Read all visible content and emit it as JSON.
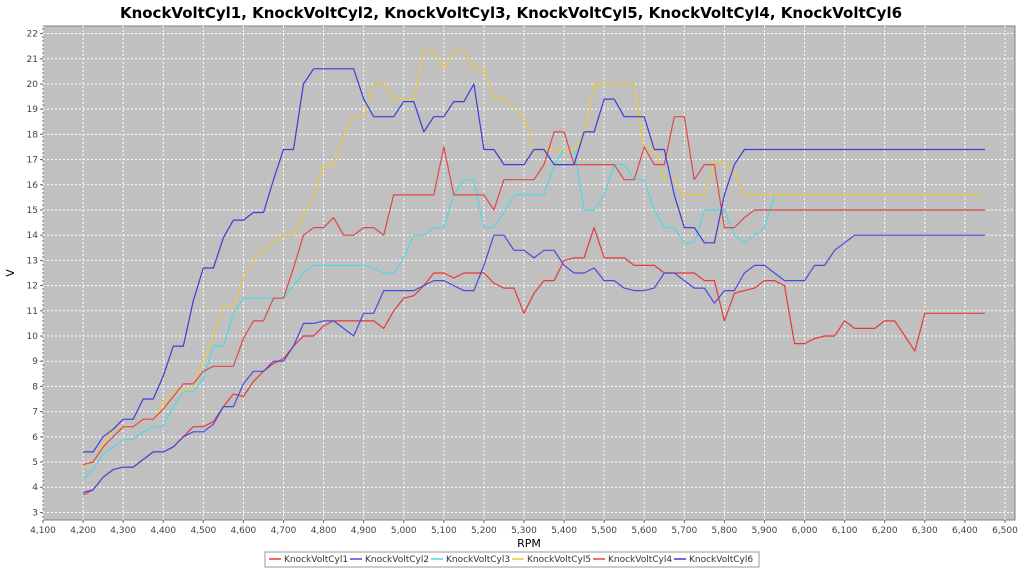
{
  "chart_data": {
    "type": "line",
    "title": "KnockVoltCyl1, KnockVoltCyl2, KnockVoltCyl3, KnockVoltCyl5, KnockVoltCyl4, KnockVoltCyl6",
    "xlabel": "RPM",
    "ylabel": "V",
    "xlim": [
      4100,
      6525
    ],
    "ylim": [
      2.7,
      22.3
    ],
    "xticks": [
      "4,100",
      "4,200",
      "4,300",
      "4,400",
      "4,500",
      "4,600",
      "4,700",
      "4,800",
      "4,900",
      "5,000",
      "5,100",
      "5,200",
      "5,300",
      "5,400",
      "5,500",
      "5,600",
      "5,700",
      "5,800",
      "5,900",
      "6,000",
      "6,100",
      "6,200",
      "6,300",
      "6,400",
      "6,500"
    ],
    "yticks": [
      "3",
      "4",
      "5",
      "6",
      "7",
      "8",
      "9",
      "10",
      "11",
      "12",
      "13",
      "14",
      "15",
      "16",
      "17",
      "18",
      "19",
      "20",
      "21",
      "22"
    ],
    "grid": true,
    "legend_position": "bottom",
    "plot_background": "#c0c0c0",
    "series": [
      {
        "name": "KnockVoltCyl1",
        "color": "#e8383a",
        "x": [
          4200,
          4225,
          4250,
          4275,
          4300,
          4325,
          4350,
          4375,
          4400,
          4425,
          4450,
          4475,
          4500,
          4525,
          4550,
          4575,
          4600,
          4625,
          4650,
          4675,
          4700,
          4725,
          4750,
          4775,
          4800,
          4825,
          4850,
          4875,
          4900,
          4925,
          4950,
          4975,
          5000,
          5025,
          5050,
          5075,
          5100,
          5125,
          5150,
          5175,
          5200,
          5225,
          5250,
          5275,
          5300,
          5325,
          5350,
          5375,
          5400,
          5425,
          5450,
          5475,
          5500,
          5525,
          5550,
          5575,
          5600,
          5625,
          5650,
          5675,
          5700,
          5725,
          5750,
          5775,
          5800,
          5825,
          5850,
          5875,
          5900,
          5925,
          5950,
          5975,
          6000,
          6025,
          6050,
          6075,
          6100,
          6125,
          6150,
          6175,
          6200,
          6225,
          6250,
          6275,
          6300,
          6325,
          6350,
          6375,
          6400,
          6425,
          6450
        ],
        "y": [
          3.7,
          3.9,
          4.4,
          4.7,
          4.8,
          4.8,
          5.1,
          5.4,
          5.4,
          5.6,
          6.0,
          6.4,
          6.4,
          6.6,
          7.2,
          7.7,
          7.6,
          8.2,
          8.6,
          8.9,
          9.1,
          9.6,
          10.0,
          10.0,
          10.4,
          10.6,
          10.6,
          10.6,
          10.6,
          10.6,
          10.3,
          11.0,
          11.5,
          11.6,
          12.0,
          12.5,
          12.5,
          12.3,
          12.5,
          12.5,
          12.5,
          12.1,
          11.9,
          11.9,
          10.9,
          11.7,
          12.2,
          12.2,
          13.0,
          13.1,
          13.1,
          14.3,
          13.1,
          13.1,
          13.1,
          12.8,
          12.8,
          12.8,
          12.5,
          12.5,
          12.5,
          12.5,
          12.2,
          12.2,
          10.6,
          11.7,
          11.8,
          11.9,
          12.2,
          12.2,
          12.0,
          9.7,
          9.7,
          9.9,
          10.0,
          10.0,
          10.6,
          10.3,
          10.3,
          10.3,
          10.6,
          10.6,
          10.0,
          9.4,
          10.9,
          10.9,
          10.9,
          10.9,
          10.9,
          10.9,
          10.9
        ]
      },
      {
        "name": "KnockVoltCyl2",
        "color": "#4a4ae0",
        "x": [
          4200,
          4225,
          4250,
          4275,
          4300,
          4325,
          4350,
          4375,
          4400,
          4425,
          4450,
          4475,
          4500,
          4525,
          4550,
          4575,
          4600,
          4625,
          4650,
          4675,
          4700,
          4725,
          4750,
          4775,
          4800,
          4825,
          4850,
          4875,
          4900,
          4925,
          4950,
          4975,
          5000,
          5025,
          5050,
          5075,
          5100,
          5125,
          5150,
          5175,
          5200,
          5225,
          5250,
          5275,
          5300,
          5325,
          5350,
          5375,
          5400,
          5425,
          5450,
          5475,
          5500,
          5525,
          5550,
          5575,
          5600,
          5625,
          5650,
          5675,
          5700,
          5725,
          5750,
          5775,
          5800,
          5825,
          5850,
          5875,
          5900,
          5925,
          5950,
          5975,
          6000,
          6025,
          6050,
          6075,
          6100,
          6125,
          6150,
          6175,
          6200,
          6225,
          6250,
          6275,
          6300,
          6325,
          6350,
          6375,
          6400,
          6425,
          6450
        ],
        "y": [
          3.8,
          3.9,
          4.4,
          4.7,
          4.8,
          4.8,
          5.1,
          5.4,
          5.4,
          5.6,
          6.0,
          6.2,
          6.2,
          6.5,
          7.2,
          7.2,
          8.1,
          8.6,
          8.6,
          9.0,
          9.0,
          9.6,
          10.5,
          10.5,
          10.6,
          10.6,
          10.3,
          10.0,
          10.9,
          10.9,
          11.8,
          11.8,
          11.8,
          11.8,
          12.0,
          12.2,
          12.2,
          12.0,
          11.8,
          11.8,
          12.8,
          14.0,
          14.0,
          13.4,
          13.4,
          13.1,
          13.4,
          13.4,
          12.8,
          12.5,
          12.5,
          12.7,
          12.2,
          12.2,
          11.9,
          11.8,
          11.8,
          11.9,
          12.5,
          12.5,
          12.2,
          11.9,
          11.9,
          11.3,
          11.8,
          11.8,
          12.5,
          12.8,
          12.8,
          12.5,
          12.2,
          12.2,
          12.2,
          12.8,
          12.8,
          13.4,
          13.7,
          14.0,
          14.0,
          14.0,
          14.0,
          14.0,
          14.0,
          14.0,
          14.0,
          14.0,
          14.0,
          14.0,
          14.0,
          14.0,
          14.0
        ]
      },
      {
        "name": "KnockVoltCyl3",
        "color": "#4fd9e0",
        "x": [
          4200,
          4225,
          4250,
          4275,
          4300,
          4325,
          4350,
          4375,
          4400,
          4425,
          4450,
          4475,
          4500,
          4525,
          4550,
          4575,
          4600,
          4625,
          4650,
          4675,
          4700,
          4725,
          4750,
          4775,
          4800,
          4825,
          4850,
          4875,
          4900,
          4925,
          4950,
          4975,
          5000,
          5025,
          5050,
          5075,
          5100,
          5125,
          5150,
          5175,
          5200,
          5225,
          5250,
          5275,
          5300,
          5325,
          5350,
          5375,
          5400,
          5425,
          5450,
          5475,
          5500,
          5525,
          5550,
          5575,
          5600,
          5625,
          5650,
          5675,
          5700,
          5725,
          5750,
          5775,
          5800,
          5825,
          5850,
          5875,
          5900,
          5925,
          5950,
          5975,
          6000,
          6025,
          6050,
          6075,
          6100,
          6125,
          6150,
          6175,
          6200,
          6225,
          6250,
          6275,
          6300,
          6325,
          6350,
          6375,
          6400,
          6425,
          6450
        ],
        "y": [
          4.3,
          4.7,
          5.3,
          5.6,
          5.9,
          5.9,
          6.2,
          6.4,
          6.4,
          7.2,
          7.8,
          7.8,
          8.3,
          9.6,
          9.6,
          10.9,
          11.5,
          11.5,
          11.5,
          11.5,
          11.5,
          12.0,
          12.5,
          12.8,
          12.8,
          12.8,
          12.8,
          12.8,
          12.8,
          12.7,
          12.5,
          12.5,
          13.1,
          14.0,
          14.0,
          14.3,
          14.3,
          15.6,
          16.2,
          16.2,
          14.3,
          14.3,
          14.9,
          15.6,
          15.6,
          15.6,
          15.6,
          16.8,
          17.4,
          17.4,
          15.0,
          15.0,
          15.6,
          16.8,
          16.8,
          16.2,
          16.2,
          15.0,
          14.3,
          14.3,
          13.7,
          13.7,
          15.0,
          15.0,
          15.0,
          14.0,
          13.7,
          14.0,
          14.3,
          15.6,
          15.6,
          15.6,
          15.6,
          15.6,
          15.6,
          15.6,
          15.6,
          15.6,
          15.6,
          15.6,
          15.6,
          15.6,
          15.6,
          15.6,
          15.6,
          15.6,
          15.6,
          15.6,
          15.6,
          15.6,
          15.6
        ]
      },
      {
        "name": "KnockVoltCyl5",
        "color": "#f0c840",
        "x": [
          4200,
          4225,
          4250,
          4275,
          4300,
          4325,
          4350,
          4375,
          4400,
          4425,
          4450,
          4475,
          4500,
          4525,
          4550,
          4575,
          4600,
          4625,
          4650,
          4675,
          4700,
          4725,
          4750,
          4775,
          4800,
          4825,
          4850,
          4875,
          4900,
          4925,
          4950,
          4975,
          5000,
          5025,
          5050,
          5075,
          5100,
          5125,
          5150,
          5175,
          5200,
          5225,
          5250,
          5275,
          5300,
          5325,
          5350,
          5375,
          5400,
          5425,
          5450,
          5475,
          5500,
          5525,
          5550,
          5575,
          5600,
          5625,
          5650,
          5675,
          5700,
          5725,
          5750,
          5775,
          5800,
          5825,
          5850,
          5875,
          5900,
          5925,
          5950,
          5975,
          6000,
          6025,
          6050,
          6075,
          6100,
          6125,
          6150,
          6175,
          6200,
          6225,
          6250,
          6275,
          6300,
          6325,
          6350,
          6375,
          6400,
          6425,
          6450
        ],
        "y": [
          4.8,
          5.0,
          5.7,
          6.3,
          6.4,
          6.4,
          6.7,
          6.7,
          7.3,
          7.8,
          7.8,
          8.0,
          9.0,
          10.0,
          11.2,
          11.2,
          12.3,
          13.0,
          13.4,
          13.7,
          14.0,
          14.0,
          14.8,
          15.5,
          16.8,
          16.8,
          18.0,
          18.7,
          18.7,
          20.0,
          20.0,
          19.4,
          19.4,
          19.4,
          21.3,
          21.3,
          20.6,
          21.3,
          21.3,
          20.6,
          20.6,
          19.4,
          19.4,
          19.0,
          18.7,
          17.4,
          17.4,
          17.4,
          17.4,
          17.4,
          18.0,
          20.0,
          20.0,
          20.0,
          20.0,
          20.0,
          17.4,
          17.4,
          16.2,
          16.2,
          15.6,
          15.6,
          15.6,
          16.9,
          16.9,
          16.5,
          15.6,
          15.6,
          15.6,
          15.6,
          15.6,
          15.6,
          15.6,
          15.6,
          15.6,
          15.6,
          15.6,
          15.6,
          15.6,
          15.6,
          15.6,
          15.6,
          15.6,
          15.6,
          15.6,
          15.6,
          15.6,
          15.6,
          15.6,
          15.6,
          15.6
        ]
      },
      {
        "name": "KnockVoltCyl4",
        "color": "#e04848",
        "x": [
          4200,
          4225,
          4250,
          4275,
          4300,
          4325,
          4350,
          4375,
          4400,
          4425,
          4450,
          4475,
          4500,
          4525,
          4550,
          4575,
          4600,
          4625,
          4650,
          4675,
          4700,
          4725,
          4750,
          4775,
          4800,
          4825,
          4850,
          4875,
          4900,
          4925,
          4950,
          4975,
          5000,
          5025,
          5050,
          5075,
          5100,
          5125,
          5150,
          5175,
          5200,
          5225,
          5250,
          5275,
          5300,
          5325,
          5350,
          5375,
          5400,
          5425,
          5450,
          5475,
          5500,
          5525,
          5550,
          5575,
          5600,
          5625,
          5650,
          5675,
          5700,
          5725,
          5750,
          5775,
          5800,
          5825,
          5850,
          5875,
          5900,
          5925,
          5950,
          5975,
          6000,
          6025,
          6050,
          6075,
          6100,
          6125,
          6150,
          6175,
          6200,
          6225,
          6250,
          6275,
          6300,
          6325,
          6350,
          6375,
          6400,
          6425,
          6450
        ],
        "y": [
          4.9,
          5.0,
          5.6,
          6.0,
          6.4,
          6.4,
          6.7,
          6.7,
          7.1,
          7.6,
          8.1,
          8.1,
          8.6,
          8.8,
          8.8,
          8.8,
          9.9,
          10.6,
          10.6,
          11.5,
          11.5,
          12.7,
          14.0,
          14.3,
          14.3,
          14.7,
          14.0,
          14.0,
          14.3,
          14.3,
          14.0,
          15.6,
          15.6,
          15.6,
          15.6,
          15.6,
          17.5,
          15.6,
          15.6,
          15.6,
          15.6,
          15.0,
          16.2,
          16.2,
          16.2,
          16.2,
          16.8,
          18.1,
          18.1,
          16.8,
          16.8,
          16.8,
          16.8,
          16.8,
          16.2,
          16.2,
          17.5,
          16.8,
          16.8,
          18.7,
          18.7,
          16.2,
          16.8,
          16.8,
          14.3,
          14.3,
          14.7,
          15.0,
          15.0,
          15.0,
          15.0,
          15.0,
          15.0,
          15.0,
          15.0,
          15.0,
          15.0,
          15.0,
          15.0,
          15.0,
          15.0,
          15.0,
          15.0,
          15.0,
          15.0,
          15.0,
          15.0,
          15.0,
          15.0,
          15.0,
          15.0
        ]
      },
      {
        "name": "KnockVoltCyl6",
        "color": "#3c3cd8",
        "x": [
          4200,
          4225,
          4250,
          4275,
          4300,
          4325,
          4350,
          4375,
          4400,
          4425,
          4450,
          4475,
          4500,
          4525,
          4550,
          4575,
          4600,
          4625,
          4650,
          4675,
          4700,
          4725,
          4750,
          4775,
          4800,
          4825,
          4850,
          4875,
          4900,
          4925,
          4950,
          4975,
          5000,
          5025,
          5050,
          5075,
          5100,
          5125,
          5150,
          5175,
          5200,
          5225,
          5250,
          5275,
          5300,
          5325,
          5350,
          5375,
          5400,
          5425,
          5450,
          5475,
          5500,
          5525,
          5550,
          5575,
          5600,
          5625,
          5650,
          5675,
          5700,
          5725,
          5750,
          5775,
          5800,
          5825,
          5850,
          5875,
          5900,
          5925,
          5950,
          5975,
          6000,
          6025,
          6050,
          6075,
          6100,
          6125,
          6150,
          6175,
          6200,
          6225,
          6250,
          6275,
          6300,
          6325,
          6350,
          6375,
          6400,
          6425,
          6450
        ],
        "y": [
          5.4,
          5.4,
          6.0,
          6.3,
          6.7,
          6.7,
          7.5,
          7.5,
          8.4,
          9.6,
          9.6,
          11.4,
          12.7,
          12.7,
          13.9,
          14.6,
          14.6,
          14.9,
          14.9,
          16.2,
          17.4,
          17.4,
          20.0,
          20.6,
          20.6,
          20.6,
          20.6,
          20.6,
          19.4,
          18.7,
          18.7,
          18.7,
          19.3,
          19.3,
          18.1,
          18.7,
          18.7,
          19.3,
          19.3,
          20.0,
          17.4,
          17.4,
          16.8,
          16.8,
          16.8,
          17.4,
          17.4,
          16.8,
          16.8,
          16.8,
          18.1,
          18.1,
          19.4,
          19.4,
          18.7,
          18.7,
          18.7,
          17.4,
          17.4,
          15.6,
          14.3,
          14.3,
          13.7,
          13.7,
          15.6,
          16.8,
          17.4,
          17.4,
          17.4,
          17.4,
          17.4,
          17.4,
          17.4,
          17.4,
          17.4,
          17.4,
          17.4,
          17.4,
          17.4,
          17.4,
          17.4,
          17.4,
          17.4,
          17.4,
          17.4,
          17.4,
          17.4,
          17.4,
          17.4,
          17.4,
          17.4
        ]
      }
    ]
  }
}
